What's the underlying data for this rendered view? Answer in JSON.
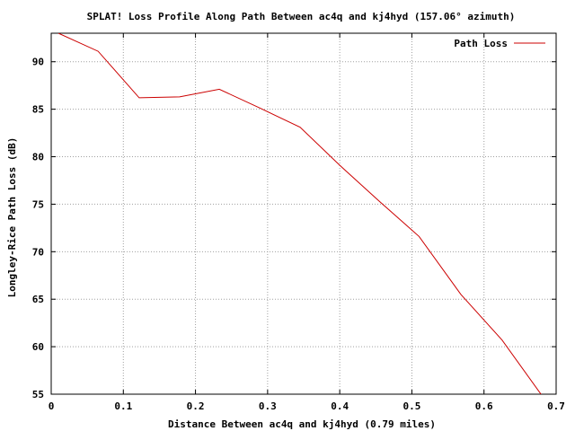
{
  "chart_data": {
    "type": "line",
    "title": "SPLAT! Loss Profile Along Path Between ac4q and kj4hyd (157.06° azimuth)",
    "xlabel": "Distance Between ac4q and kj4hyd (0.79 miles)",
    "ylabel": "Longley-Rice Path Loss (dB)",
    "xlim": [
      0,
      0.7
    ],
    "ylim": [
      55,
      93
    ],
    "xticks": [
      0,
      0.1,
      0.2,
      0.3,
      0.4,
      0.5,
      0.6,
      0.7
    ],
    "xtick_labels": [
      "0",
      "0.1",
      "0.2",
      "0.3",
      "0.4",
      "0.5",
      "0.6",
      "0.7"
    ],
    "yticks": [
      55,
      60,
      65,
      70,
      75,
      80,
      85,
      90
    ],
    "ytick_labels": [
      "55",
      "60",
      "65",
      "70",
      "75",
      "80",
      "85",
      "90"
    ],
    "grid": true,
    "legend_position": "top-right",
    "series": [
      {
        "name": "Path Loss",
        "color": "#cc0000",
        "x": [
          0.01,
          0.065,
          0.122,
          0.178,
          0.233,
          0.29,
          0.345,
          0.4,
          0.455,
          0.51,
          0.568,
          0.625,
          0.68
        ],
        "y": [
          93.0,
          91.1,
          86.2,
          86.3,
          87.1,
          85.1,
          83.1,
          79.1,
          75.3,
          71.6,
          65.5,
          60.7,
          54.9
        ]
      }
    ]
  }
}
